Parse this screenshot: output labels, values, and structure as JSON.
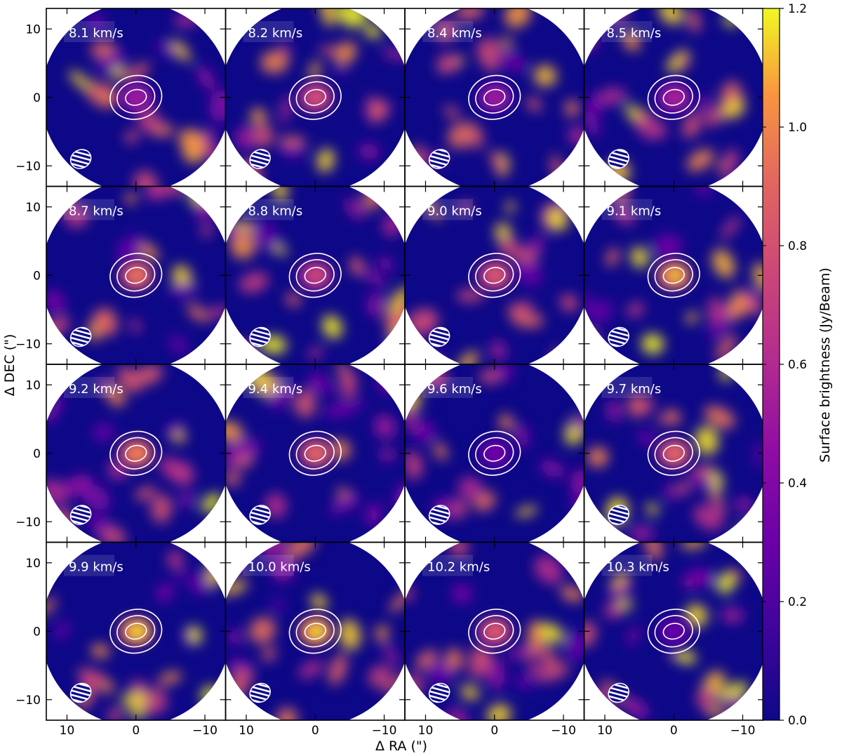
{
  "chart_data": {
    "type": "heatmap",
    "layout": "4x4 channel-map grid, shared axes",
    "xlabel": "Δ RA (\")",
    "ylabel": "Δ DEC (\")",
    "xlim": [
      13,
      -13
    ],
    "ylim": [
      -13,
      13
    ],
    "x_ticks": [
      10,
      0,
      -10
    ],
    "x_tick_labels": [
      "10",
      "0",
      "−10"
    ],
    "y_ticks": [
      10,
      0,
      -10
    ],
    "y_tick_labels": [
      "10",
      "0",
      "−10"
    ],
    "colormap": "plasma",
    "colorbar": {
      "label": "Surface brightness (Jy/Beam)",
      "range": [
        0.0,
        1.2
      ],
      "ticks": [
        0.0,
        0.2,
        0.4,
        0.6,
        0.8,
        1.0,
        1.2
      ],
      "tick_labels": [
        "0.0",
        "0.2",
        "0.4",
        "0.6",
        "0.8",
        "1.0",
        "1.2"
      ]
    },
    "panels": [
      {
        "label": "8.1 km/s",
        "center_peak": 0.55
      },
      {
        "label": "8.2 km/s",
        "center_peak": 0.85
      },
      {
        "label": "8.4 km/s",
        "center_peak": 0.55
      },
      {
        "label": "8.5 km/s",
        "center_peak": 0.6
      },
      {
        "label": "8.7 km/s",
        "center_peak": 1.0
      },
      {
        "label": "8.8 km/s",
        "center_peak": 0.8
      },
      {
        "label": "9.0 km/s",
        "center_peak": 0.9
      },
      {
        "label": "9.1 km/s",
        "center_peak": 1.15
      },
      {
        "label": "9.2 km/s",
        "center_peak": 1.05
      },
      {
        "label": "9.4 km/s",
        "center_peak": 0.95
      },
      {
        "label": "9.6 km/s",
        "center_peak": 0.35
      },
      {
        "label": "9.7 km/s",
        "center_peak": 0.95
      },
      {
        "label": "9.9 km/s",
        "center_peak": 1.2
      },
      {
        "label": "10.0 km/s",
        "center_peak": 1.2
      },
      {
        "label": "10.2 km/s",
        "center_peak": 0.9
      },
      {
        "label": "10.3 km/s",
        "center_peak": 0.3
      }
    ],
    "contours": "three white elliptical contours centred at (0, 0)",
    "beam": "hatched white ellipse at lower left (≈ +8, −9)"
  }
}
